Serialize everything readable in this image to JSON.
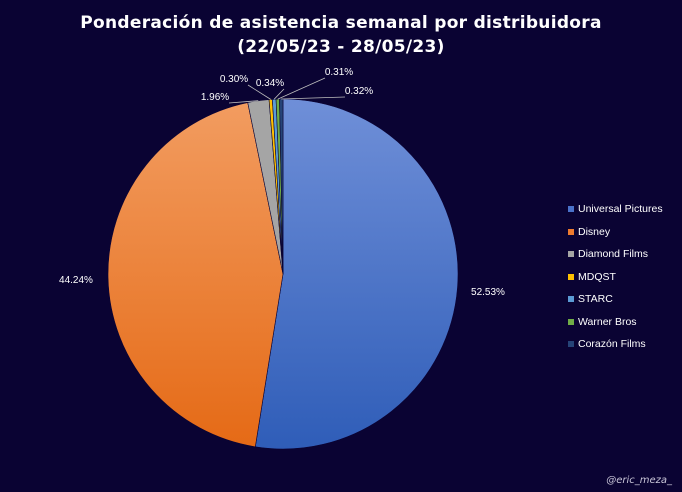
{
  "chart_data": {
    "type": "pie",
    "title_line1": "Ponderación de asistencia semanal por distribuidora",
    "title_line2": "(22/05/23 - 28/05/23)",
    "categories": [
      "Universal Pictures",
      "Disney",
      "Diamond Films",
      "MDQST",
      "STARC",
      "Warner Bros",
      "Corazón Films"
    ],
    "values": [
      52.53,
      44.24,
      1.96,
      0.3,
      0.34,
      0.31,
      0.32
    ],
    "labels": [
      "52.53%",
      "44.24%",
      "1.96%",
      "0.30%",
      "0.34%",
      "0.31%",
      "0.32%"
    ],
    "colors": [
      "#4a72c9",
      "#ee7b2f",
      "#a5a5a5",
      "#ffc000",
      "#5b9bd5",
      "#70ad47",
      "#264478"
    ],
    "legend_position": "right"
  },
  "watermark": "@eric_meza_"
}
